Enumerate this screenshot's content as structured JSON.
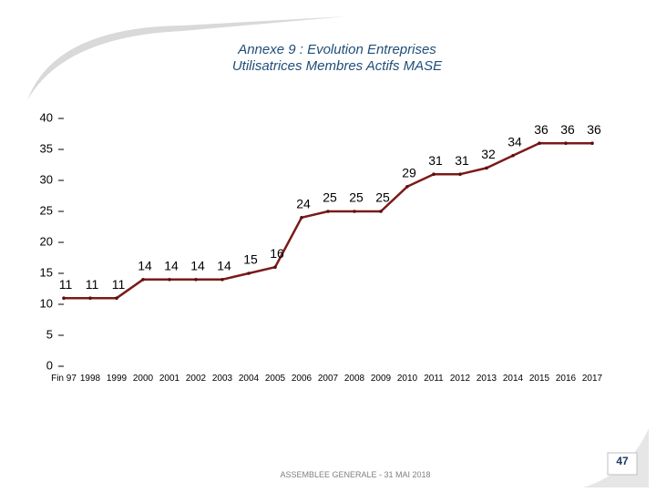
{
  "chart_data": {
    "type": "line",
    "title_lines": [
      "Annexe 9 : Evolution Entreprises",
      "Utilisatrices Membres Actifs MASE"
    ],
    "categories": [
      "Fin 97",
      "1998",
      "1999",
      "2000",
      "2001",
      "2002",
      "2003",
      "2004",
      "2005",
      "2006",
      "2007",
      "2008",
      "2009",
      "2010",
      "2011",
      "2012",
      "2013",
      "2014",
      "2015",
      "2016",
      "2017"
    ],
    "values": [
      11,
      11,
      11,
      14,
      14,
      14,
      14,
      15,
      16,
      24,
      25,
      25,
      25,
      29,
      31,
      31,
      32,
      34,
      36,
      36,
      36
    ],
    "color": "#7b1a1a",
    "ylim": [
      0,
      40
    ],
    "yticks": [
      0,
      5,
      10,
      15,
      20,
      25,
      30,
      35,
      40
    ]
  },
  "footer": "ASSEMBLEE GENERALE - 31 MAI 2018",
  "page_number": "47"
}
